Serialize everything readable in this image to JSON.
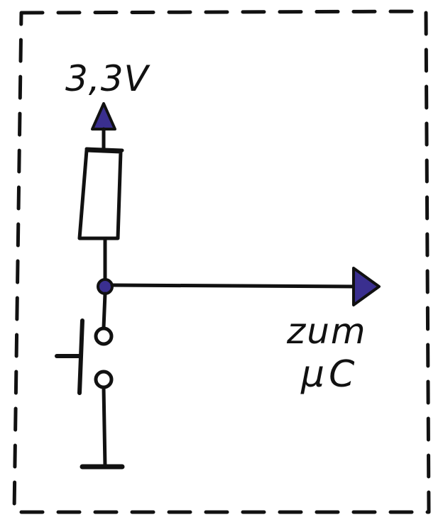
{
  "diagram": {
    "type": "circuit-schematic",
    "supply_label": "3,3V",
    "output_label_line1": "zum",
    "output_label_line2": "µC",
    "components": [
      {
        "kind": "supply-arrow-icon"
      },
      {
        "kind": "resistor"
      },
      {
        "kind": "junction-node"
      },
      {
        "kind": "push-button-switch"
      },
      {
        "kind": "ground-symbol"
      },
      {
        "kind": "output-arrow-icon"
      }
    ],
    "colors": {
      "ink": "#111111",
      "fill_accent": "#3a2f8f",
      "background": "#ffffff"
    }
  }
}
